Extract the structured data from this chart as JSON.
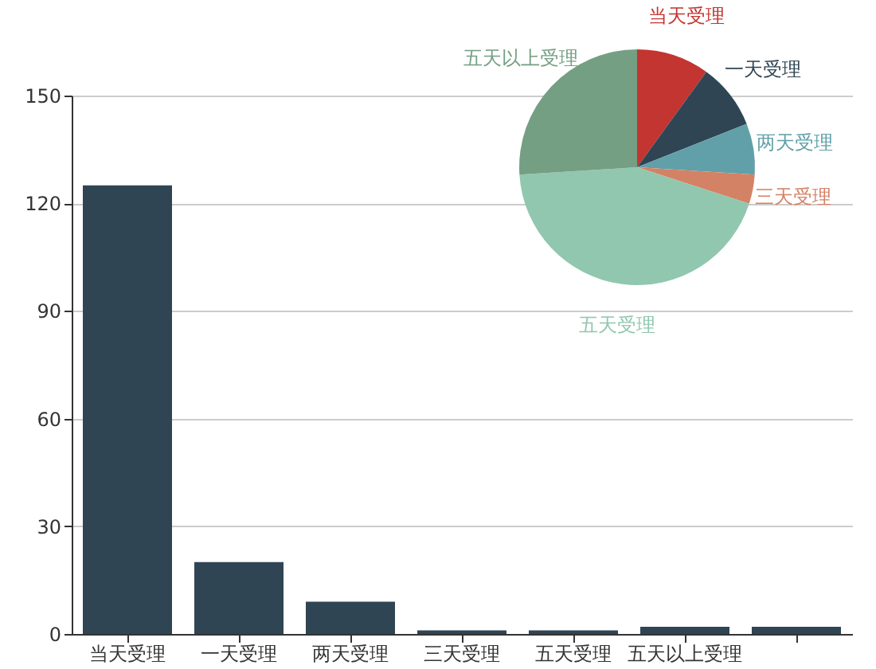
{
  "chart_data": [
    {
      "type": "bar",
      "categories": [
        "当天受理",
        "一天受理",
        "两天受理",
        "三天受理",
        "五天受理",
        "五天以上受理",
        null
      ],
      "values": [
        125,
        20,
        9,
        1,
        1,
        2,
        2
      ],
      "color": "#2f4554",
      "ylim": [
        0,
        150
      ],
      "yticks": [
        0,
        30,
        60,
        90,
        120,
        150
      ],
      "grid": "y"
    },
    {
      "type": "pie",
      "categories": [
        "当天受理",
        "一天受理",
        "两天受理",
        "三天受理",
        "五天受理",
        "五天以上受理"
      ],
      "values": [
        10,
        9,
        7,
        4,
        44,
        26
      ],
      "colors": [
        "#c23531",
        "#2f4554",
        "#61a0a8",
        "#d48265",
        "#91c7ae",
        "#749f83"
      ]
    }
  ]
}
